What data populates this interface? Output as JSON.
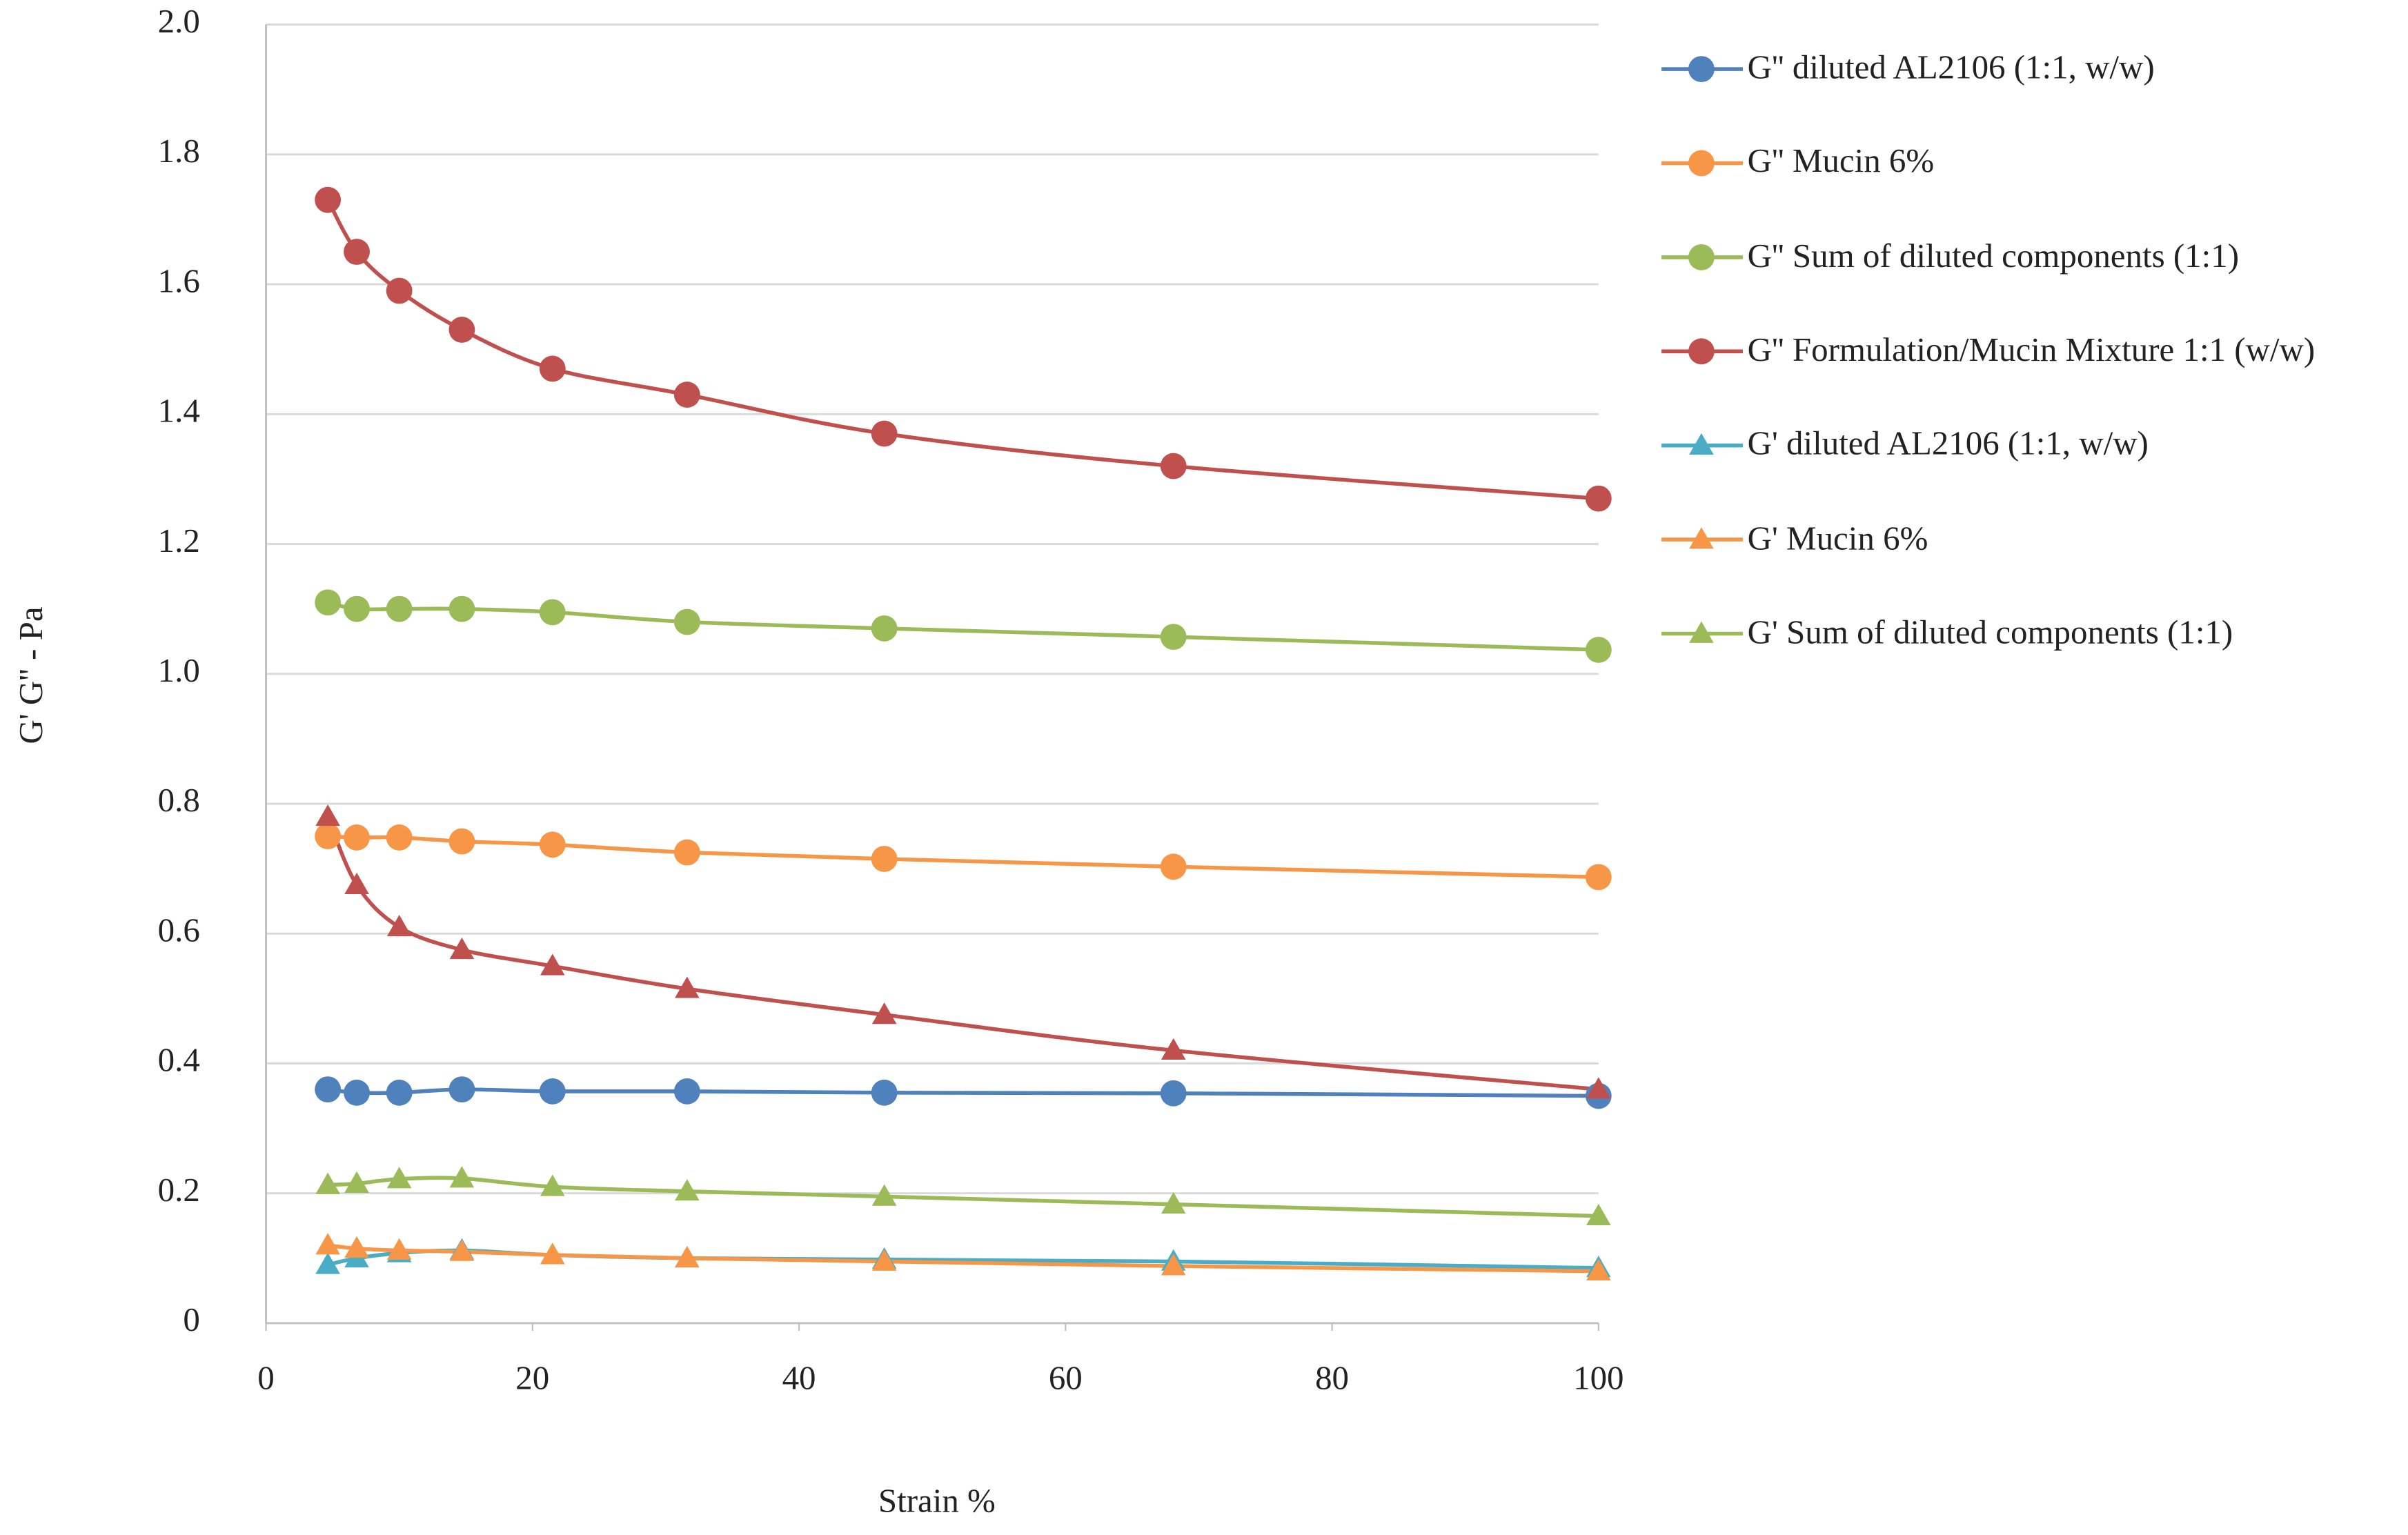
{
  "chart_data": {
    "type": "line",
    "x_label": "Strain %",
    "y_label": "G' G'' - Pa",
    "x": [
      4.64,
      6.81,
      10,
      14.7,
      21.5,
      31.6,
      46.4,
      68.1,
      100
    ],
    "xlim": [
      0,
      100
    ],
    "xticks": [
      0,
      20,
      40,
      60,
      80,
      100
    ],
    "ylim": [
      0,
      2
    ],
    "yticks": [
      0,
      0.2,
      0.4,
      0.6,
      0.8,
      {
        "value": 1,
        "label": "1.0"
      },
      1.2,
      1.4,
      1.6,
      1.8,
      {
        "value": 2,
        "label": "2.0"
      }
    ],
    "grid": true,
    "legend": "right",
    "series": [
      {
        "name": "G'' diluted AL2106 (1:1, w/w)",
        "color": "#4f81bd",
        "marker": "circle",
        "values": [
          0.36,
          0.355,
          0.355,
          0.36,
          0.357,
          0.357,
          0.355,
          0.354,
          0.35
        ]
      },
      {
        "name": "G'' Mucin 6%",
        "color": "#f79646",
        "marker": "circle",
        "values": [
          0.75,
          0.748,
          0.748,
          0.742,
          0.737,
          0.725,
          0.715,
          0.703,
          0.687
        ]
      },
      {
        "name": "G'' Sum of diluted components (1:1)",
        "color": "#9bbb59",
        "marker": "circle",
        "values": [
          1.11,
          1.1,
          1.1,
          1.1,
          1.095,
          1.08,
          1.07,
          1.057,
          1.037
        ]
      },
      {
        "name": "G'' Formulation/Mucin Mixture 1:1 (w/w)",
        "color": "#c0504d",
        "marker": "circle",
        "values": [
          1.73,
          1.65,
          1.59,
          1.53,
          1.47,
          1.43,
          1.37,
          1.32,
          1.27
        ]
      },
      {
        "name": "G' diluted AL2106 (1:1, w/w)",
        "color": "#4bacc6",
        "marker": "triangle",
        "values": [
          0.09,
          0.1,
          0.108,
          0.112,
          0.105,
          0.1,
          0.098,
          0.095,
          0.085
        ]
      },
      {
        "name": "G' Mucin 6%",
        "color": "#f79646",
        "marker": "triangle",
        "values": [
          0.12,
          0.115,
          0.112,
          0.11,
          0.105,
          0.1,
          0.095,
          0.088,
          0.08
        ]
      },
      {
        "name": "G' Sum of diluted components (1:1)",
        "color": "#9bbb59",
        "marker": "triangle",
        "values": [
          0.213,
          0.215,
          0.222,
          0.223,
          0.21,
          0.203,
          0.195,
          0.183,
          0.165
        ]
      },
      {
        "color": "#c0504d",
        "marker": "triangle",
        "values": [
          0.78,
          0.675,
          0.61,
          0.575,
          0.55,
          0.515,
          0.475,
          0.42,
          0.36
        ]
      }
    ]
  }
}
